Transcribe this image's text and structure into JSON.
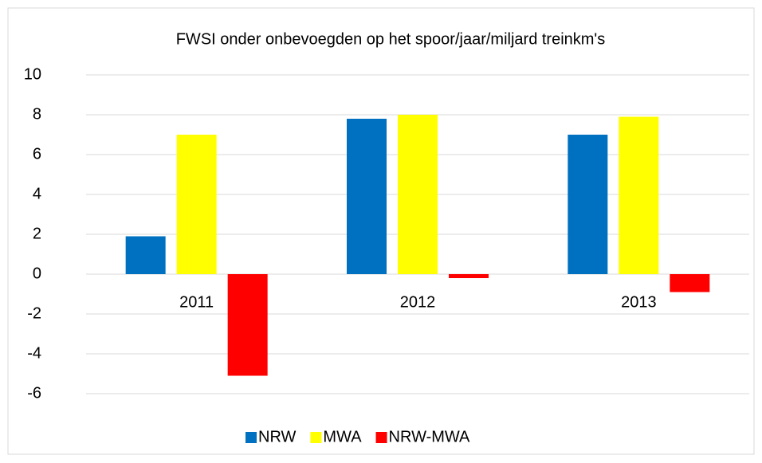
{
  "chart_data": {
    "type": "bar",
    "title": "FWSI onder onbevoegden op het spoor/jaar/miljard treinkm's",
    "categories": [
      "2011",
      "2012",
      "2013"
    ],
    "series": [
      {
        "name": "NRW",
        "color": "#0070c0",
        "values": [
          1.9,
          7.8,
          7.0
        ]
      },
      {
        "name": "MWA",
        "color": "#ffff00",
        "values": [
          7.0,
          8.0,
          7.9
        ]
      },
      {
        "name": "NRW-MWA",
        "color": "#ff0000",
        "values": [
          -5.1,
          -0.2,
          -0.9
        ]
      }
    ],
    "ylim": [
      -6,
      10
    ],
    "yticks": [
      -6,
      -4,
      -2,
      0,
      2,
      4,
      6,
      8,
      10
    ],
    "grid": true,
    "legend": "bottom"
  }
}
